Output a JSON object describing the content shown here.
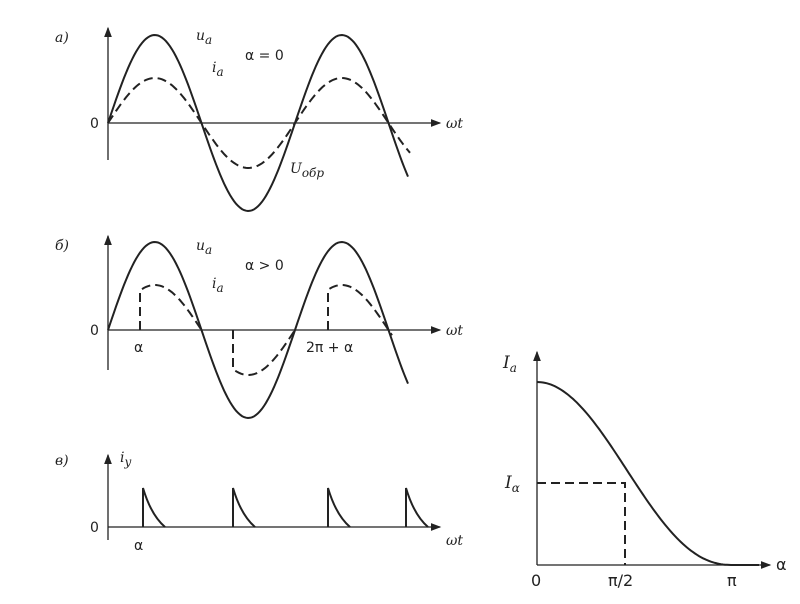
{
  "panels": [
    {
      "label": "а)",
      "zero": "0",
      "axis": "ωt",
      "u": {
        "main": "u",
        "sub": "a"
      },
      "i": {
        "main": "i",
        "sub": "a"
      },
      "note": "α = 0",
      "reverse": {
        "main": "U",
        "sub": "обр"
      }
    },
    {
      "label": "б)",
      "zero": "0",
      "axis": "ωt",
      "u": {
        "main": "u",
        "sub": "a"
      },
      "i": {
        "main": "i",
        "sub": "a"
      },
      "note": "α > 0",
      "alpha": "α",
      "alpha2": "2π + α"
    },
    {
      "label": "в)",
      "zero": "0",
      "axis": "ωt",
      "iy": {
        "main": "i",
        "sub": "y"
      },
      "alpha": "α"
    }
  ],
  "graph": {
    "ylabel": {
      "main": "I",
      "sub": "a"
    },
    "ialpha": {
      "main": "I",
      "sub": "α"
    },
    "zero": "0",
    "half": "π/2",
    "pi": "π",
    "xlabel": "α"
  }
}
